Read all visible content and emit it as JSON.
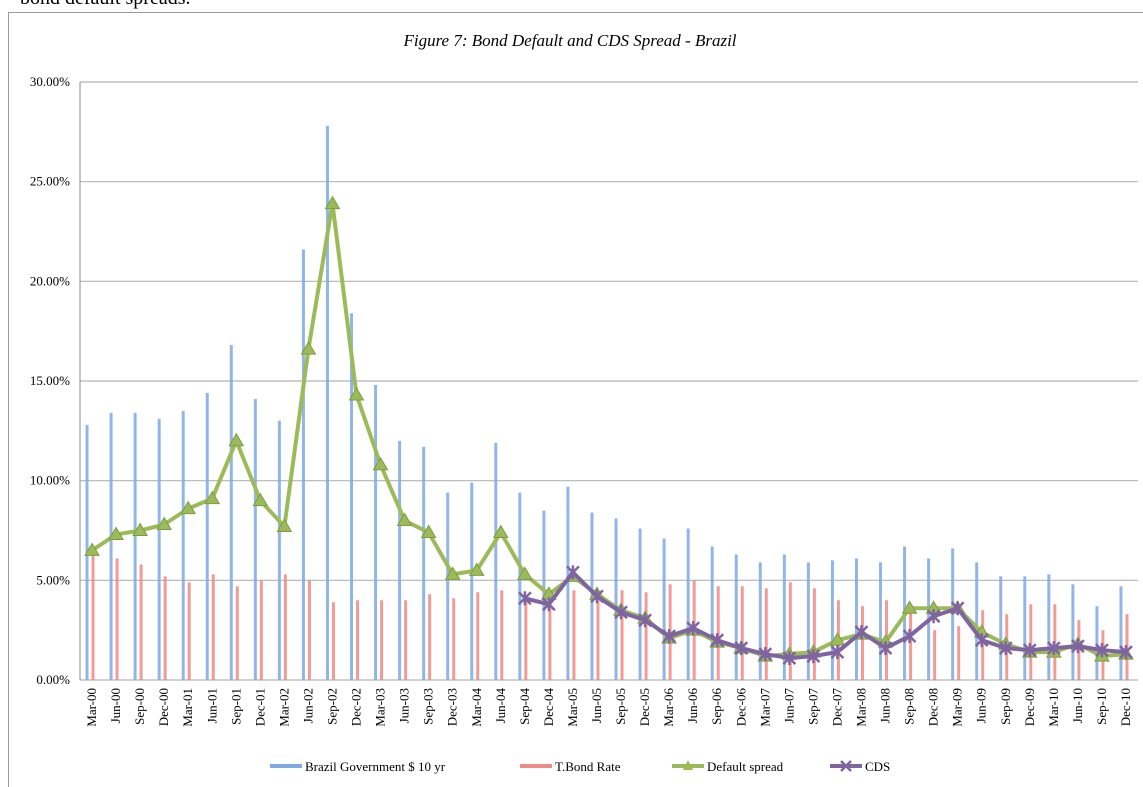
{
  "caption": "bond default spreads.",
  "chart_data": {
    "type": "bar",
    "title": "Figure 7: Bond Default and CDS  Spread - Brazil",
    "categories": [
      "Mar-00",
      "Jun-00",
      "Sep-00",
      "Dec-00",
      "Mar-01",
      "Jun-01",
      "Sep-01",
      "Dec-01",
      "Mar-02",
      "Jun-02",
      "Sep-02",
      "Dec-02",
      "Mar-03",
      "Jun-03",
      "Sep-03",
      "Dec-03",
      "Mar-04",
      "Jun-04",
      "Sep-04",
      "Dec-04",
      "Mar-05",
      "Jun-05",
      "Sep-05",
      "Dec-05",
      "Mar-06",
      "Jun-06",
      "Sep-06",
      "Dec-06",
      "Mar-07",
      "Jun-07",
      "Sep-07",
      "Dec-07",
      "Mar-08",
      "Jun-08",
      "Sep-08",
      "Dec-08",
      "Mar-09",
      "Jun-09",
      "Sep-09",
      "Dec-09",
      "Mar-10",
      "Jun-10",
      "Sep-10",
      "Dec-10"
    ],
    "series": [
      {
        "name": "Brazil Government $ 10 yr",
        "type": "bar",
        "color": "#7ea9e1",
        "values": [
          12.8,
          13.4,
          13.4,
          13.1,
          13.5,
          14.4,
          16.8,
          14.1,
          13.0,
          21.6,
          27.8,
          18.4,
          14.8,
          12.0,
          11.7,
          9.4,
          9.9,
          11.9,
          9.4,
          8.5,
          9.7,
          8.4,
          8.1,
          7.6,
          7.1,
          7.6,
          6.7,
          6.3,
          5.9,
          6.3,
          5.9,
          6.0,
          6.1,
          5.9,
          6.7,
          6.1,
          6.6,
          5.9,
          5.2,
          5.2,
          5.3,
          4.8,
          3.7,
          4.7
        ]
      },
      {
        "name": "T.Bond Rate",
        "type": "bar",
        "color": "#f08a84",
        "values": [
          6.3,
          6.1,
          5.8,
          5.2,
          4.9,
          5.3,
          4.7,
          5.0,
          5.3,
          5.0,
          3.9,
          4.0,
          4.0,
          4.0,
          4.3,
          4.1,
          4.4,
          4.5,
          4.2,
          4.2,
          4.5,
          4.0,
          4.5,
          4.4,
          4.8,
          5.0,
          4.7,
          4.7,
          4.6,
          4.9,
          4.6,
          4.0,
          3.7,
          4.0,
          3.8,
          2.5,
          2.7,
          3.5,
          3.3,
          3.8,
          3.8,
          3.0,
          2.5,
          3.3
        ]
      },
      {
        "name": "Default spread",
        "type": "line",
        "marker": "triangle",
        "color": "#9bbb59",
        "values": [
          6.5,
          7.3,
          7.5,
          7.8,
          8.6,
          9.1,
          12.0,
          9.0,
          7.7,
          16.6,
          23.9,
          14.3,
          10.8,
          8.0,
          7.4,
          5.3,
          5.5,
          7.4,
          5.3,
          4.3,
          5.2,
          4.3,
          3.5,
          3.1,
          2.1,
          2.5,
          1.9,
          1.6,
          1.2,
          1.3,
          1.4,
          2.0,
          2.3,
          1.9,
          3.6,
          3.6,
          3.6,
          2.4,
          1.8,
          1.4,
          1.4,
          1.8,
          1.2,
          1.3
        ]
      },
      {
        "name": "CDS",
        "type": "line",
        "marker": "star",
        "color": "#8064a2",
        "values": [
          null,
          null,
          null,
          null,
          null,
          null,
          null,
          null,
          null,
          null,
          null,
          null,
          null,
          null,
          null,
          null,
          null,
          null,
          4.1,
          3.8,
          5.4,
          4.2,
          3.4,
          3.0,
          2.2,
          2.6,
          2.0,
          1.6,
          1.3,
          1.1,
          1.2,
          1.4,
          2.4,
          1.6,
          2.2,
          3.2,
          3.6,
          2.0,
          1.6,
          1.5,
          1.6,
          1.7,
          1.5,
          1.4
        ]
      }
    ],
    "ylim": [
      0,
      30
    ],
    "yticks": [
      {
        "value": 0,
        "label": "0.00%"
      },
      {
        "value": 5,
        "label": "5.00%"
      },
      {
        "value": 10,
        "label": "10.00%"
      },
      {
        "value": 15,
        "label": "15.00%"
      },
      {
        "value": 20,
        "label": "20.00%"
      },
      {
        "value": 25,
        "label": "25.00%"
      },
      {
        "value": 30,
        "label": "30.00%"
      }
    ],
    "grid": true,
    "legend": "bottom"
  }
}
